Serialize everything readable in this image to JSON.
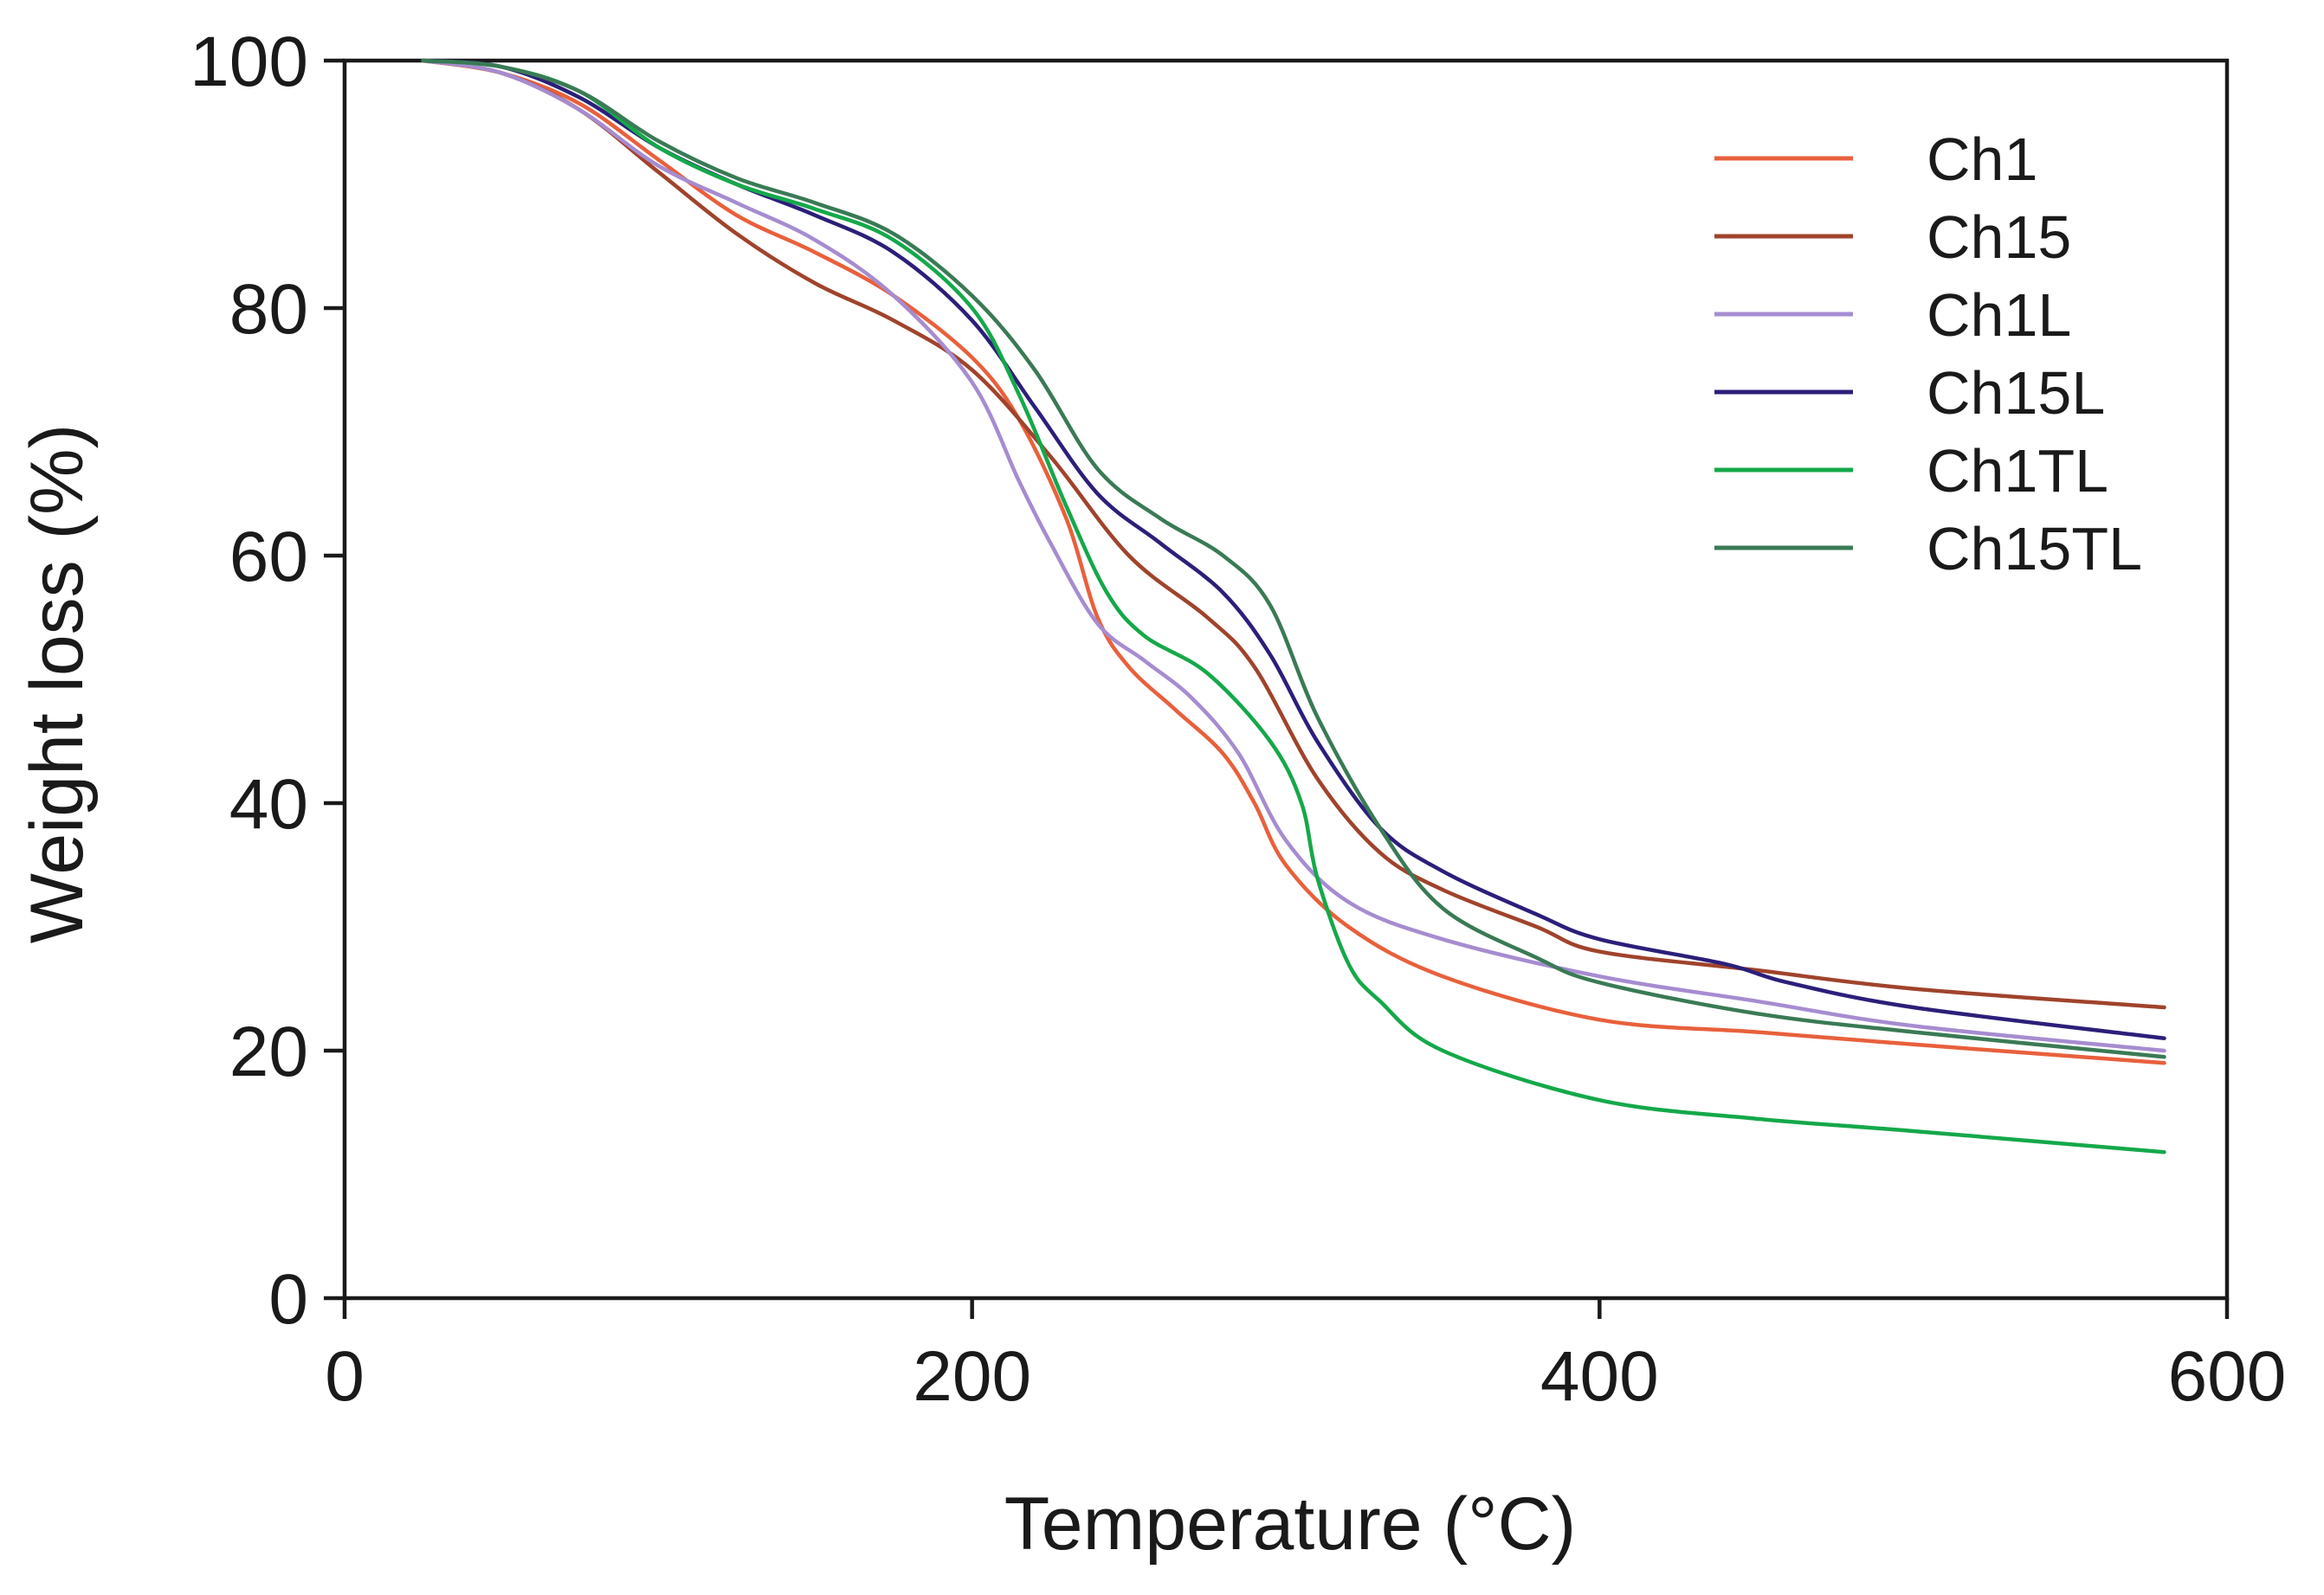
{
  "chart_data": {
    "type": "line",
    "title": "",
    "xlabel": "Temperature (°C)",
    "ylabel": "Weight loss (%)",
    "xlim": [
      0,
      600
    ],
    "ylim": [
      0,
      100
    ],
    "xticks": [
      0,
      200,
      400,
      600
    ],
    "yticks": [
      0,
      20,
      40,
      60,
      80,
      100
    ],
    "xtick_labels": [
      "0",
      "200",
      "400",
      "600"
    ],
    "ytick_labels": [
      "0",
      "20",
      "40",
      "60",
      "80",
      "100"
    ],
    "grid": false,
    "legend_position": "top-right",
    "series": [
      {
        "name": "Ch1",
        "color": "#e8603c",
        "x": [
          25,
          50,
          75,
          100,
          125,
          150,
          175,
          200,
          215,
          230,
          240,
          250,
          265,
          280,
          290,
          300,
          320,
          350,
          400,
          450,
          500,
          580
        ],
        "y": [
          100,
          99,
          96.5,
          92,
          87.5,
          84.5,
          81,
          76,
          71,
          63,
          55,
          51,
          47.5,
          44,
          40,
          35,
          30,
          26,
          22.5,
          21.5,
          20.5,
          19
        ]
      },
      {
        "name": "Ch15",
        "color": "#a0432c",
        "x": [
          25,
          50,
          75,
          100,
          125,
          150,
          175,
          200,
          225,
          250,
          275,
          290,
          310,
          330,
          350,
          380,
          400,
          450,
          500,
          580
        ],
        "y": [
          100,
          99,
          96,
          91,
          86,
          82,
          79,
          75,
          68,
          60,
          55,
          51,
          42,
          36,
          33,
          30,
          28,
          26.5,
          25,
          23.5
        ]
      },
      {
        "name": "Ch1L",
        "color": "#a68cd0",
        "x": [
          25,
          50,
          75,
          100,
          125,
          150,
          175,
          200,
          215,
          225,
          240,
          255,
          270,
          285,
          300,
          320,
          350,
          400,
          450,
          500,
          580
        ],
        "y": [
          100,
          99,
          96,
          91.5,
          88.5,
          85.5,
          81,
          74,
          66,
          61,
          54.5,
          51.5,
          48.5,
          44,
          37,
          32,
          29,
          26,
          24,
          22,
          20
        ]
      },
      {
        "name": "Ch15L",
        "color": "#2b1f7a",
        "x": [
          25,
          50,
          75,
          100,
          125,
          150,
          175,
          200,
          220,
          240,
          260,
          280,
          295,
          310,
          330,
          350,
          380,
          400,
          440,
          460,
          500,
          580
        ],
        "y": [
          100,
          99.5,
          97,
          93,
          90,
          87.5,
          84.5,
          79,
          72,
          65,
          61,
          57,
          52,
          45,
          38,
          34.5,
          31,
          29,
          27,
          25.5,
          23.5,
          21
        ]
      },
      {
        "name": "Ch1TL",
        "color": "#15a84a",
        "x": [
          25,
          50,
          75,
          100,
          125,
          150,
          175,
          200,
          215,
          230,
          243,
          255,
          275,
          295,
          305,
          310,
          320,
          330,
          350,
          400,
          450,
          500,
          580
        ],
        "y": [
          100,
          99.5,
          97.5,
          93,
          90,
          88,
          85.5,
          80,
          73,
          64,
          57,
          53.5,
          50.5,
          45,
          40,
          34,
          27,
          24,
          20,
          16,
          14.5,
          13.5,
          11.8
        ]
      },
      {
        "name": "Ch15TL",
        "color": "#3a7a55",
        "x": [
          25,
          50,
          75,
          100,
          125,
          150,
          175,
          200,
          220,
          240,
          260,
          280,
          295,
          310,
          330,
          350,
          380,
          400,
          450,
          500,
          580
        ],
        "y": [
          100,
          99.5,
          97.5,
          93.5,
          90.5,
          88.5,
          86,
          81,
          75,
          67,
          63,
          60,
          56,
          47,
          38,
          31.5,
          27.5,
          25.5,
          23,
          21.5,
          19.5
        ]
      }
    ]
  }
}
